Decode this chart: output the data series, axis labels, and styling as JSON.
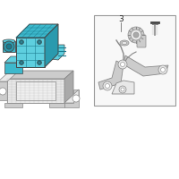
{
  "background_color": "#ffffff",
  "cyan_light": "#5ecfdf",
  "cyan_mid": "#3db8cc",
  "cyan_dark": "#2a9aae",
  "cyan_darker": "#1a7a8e",
  "gray_light": "#e8e8e8",
  "gray_mid": "#cccccc",
  "gray_dark": "#aaaaaa",
  "line_color": "#888888",
  "dark_line": "#444444",
  "box_border": "#999999",
  "figsize": [
    2.0,
    2.0
  ],
  "dpi": 100
}
